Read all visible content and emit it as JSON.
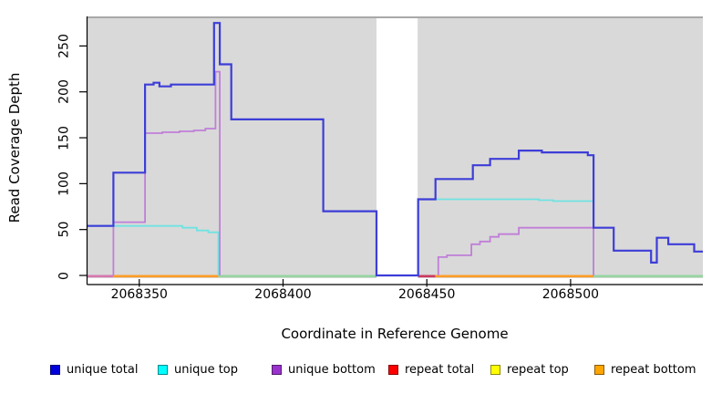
{
  "axes": {
    "x": {
      "title": "Coordinate in Reference Genome",
      "ticks": [
        {
          "value": 2068350,
          "label": "2068350"
        },
        {
          "value": 2068400,
          "label": "2068400"
        },
        {
          "value": 2068450,
          "label": "2068450"
        },
        {
          "value": 2068500,
          "label": "2068500"
        }
      ]
    },
    "y": {
      "title": "Read Coverage Depth",
      "ticks": [
        {
          "value": 0,
          "label": "0"
        },
        {
          "value": 50,
          "label": "50"
        },
        {
          "value": 100,
          "label": "100"
        },
        {
          "value": 150,
          "label": "150"
        },
        {
          "value": 200,
          "label": "200"
        },
        {
          "value": 250,
          "label": "250"
        }
      ]
    }
  },
  "legend": {
    "items": [
      {
        "label": "unique total",
        "color": "#0000dd"
      },
      {
        "label": "unique top",
        "color": "#00ffff"
      },
      {
        "label": "unique bottom",
        "color": "#9933cc"
      },
      {
        "label": "repeat total",
        "color": "#ff0000"
      },
      {
        "label": "repeat top",
        "color": "#ffff00"
      },
      {
        "label": "repeat bottom",
        "color": "#ffa500"
      }
    ]
  },
  "chart_data": {
    "type": "line",
    "style": "step",
    "title": "",
    "xlabel": "Coordinate in Reference Genome",
    "ylabel": "Read Coverage Depth",
    "x_range": [
      2068332,
      2068546
    ],
    "y_range": [
      0,
      285
    ],
    "plot_bg": "#d9d9d9",
    "top_border_color": "#a8a8a8",
    "no_data_gap": [
      2068432.5,
      2068446.8
    ],
    "series": [
      {
        "name": "unique top",
        "color": "#6fe3e1",
        "width": 1.8,
        "paths": [
          [
            [
              2068332,
              54
            ],
            [
              2068365,
              54
            ],
            [
              2068365,
              52
            ],
            [
              2068370,
              52
            ],
            [
              2068370,
              49
            ],
            [
              2068374,
              49
            ],
            [
              2068374,
              47
            ],
            [
              2068377.5,
              47
            ],
            [
              2068377.5,
              0
            ]
          ],
          [
            [
              2068447,
              0
            ],
            [
              2068447,
              83
            ],
            [
              2068489,
              83
            ],
            [
              2068489,
              82
            ],
            [
              2068494,
              82
            ],
            [
              2068494,
              81
            ],
            [
              2068508,
              81
            ],
            [
              2068508,
              0
            ]
          ]
        ]
      },
      {
        "name": "unique bottom",
        "color": "#c07fd8",
        "width": 1.8,
        "paths": [
          [
            [
              2068341,
              0
            ],
            [
              2068341,
              58
            ],
            [
              2068352,
              58
            ],
            [
              2068352,
              155
            ],
            [
              2068358,
              155
            ],
            [
              2068358,
              156
            ],
            [
              2068364,
              156
            ],
            [
              2068364,
              157
            ],
            [
              2068369,
              157
            ],
            [
              2068369,
              158
            ],
            [
              2068373,
              158
            ],
            [
              2068373,
              160
            ],
            [
              2068376.5,
              160
            ],
            [
              2068376.5,
              222
            ],
            [
              2068378,
              222
            ],
            [
              2068378,
              0
            ]
          ],
          [
            [
              2068454,
              0
            ],
            [
              2068454,
              20
            ],
            [
              2068457,
              20
            ],
            [
              2068457,
              22
            ],
            [
              2068465.5,
              22
            ],
            [
              2068465.5,
              34
            ],
            [
              2068468.5,
              34
            ],
            [
              2068468.5,
              37
            ],
            [
              2068472,
              37
            ],
            [
              2068472,
              42
            ],
            [
              2068475,
              42
            ],
            [
              2068475,
              45
            ],
            [
              2068482,
              45
            ],
            [
              2068482,
              52
            ],
            [
              2068508,
              52
            ],
            [
              2068508,
              0
            ]
          ]
        ]
      },
      {
        "name": "unique total",
        "color": "#3d3dd8",
        "width": 2.2,
        "paths": [
          [
            [
              2068332,
              54
            ],
            [
              2068341,
              54
            ],
            [
              2068341,
              112
            ],
            [
              2068352,
              112
            ],
            [
              2068352,
              208
            ],
            [
              2068355,
              208
            ],
            [
              2068355,
              210
            ],
            [
              2068357,
              210
            ],
            [
              2068357,
              206
            ],
            [
              2068361,
              206
            ],
            [
              2068361,
              208
            ],
            [
              2068376,
              208
            ],
            [
              2068376,
              275
            ],
            [
              2068378,
              275
            ],
            [
              2068378,
              230
            ],
            [
              2068382,
              230
            ],
            [
              2068382,
              170
            ],
            [
              2068414,
              170
            ],
            [
              2068414,
              70
            ],
            [
              2068432.5,
              70
            ],
            [
              2068432.5,
              0
            ],
            [
              2068447,
              0
            ],
            [
              2068447,
              83
            ],
            [
              2068453,
              83
            ],
            [
              2068453,
              105
            ],
            [
              2068466,
              105
            ],
            [
              2068466,
              120
            ],
            [
              2068472,
              120
            ],
            [
              2068472,
              127
            ],
            [
              2068482,
              127
            ],
            [
              2068482,
              136
            ],
            [
              2068490,
              136
            ],
            [
              2068490,
              134
            ],
            [
              2068506,
              134
            ],
            [
              2068506,
              131
            ],
            [
              2068508,
              131
            ],
            [
              2068508,
              52
            ],
            [
              2068515,
              52
            ],
            [
              2068515,
              27
            ],
            [
              2068528,
              27
            ],
            [
              2068528,
              14
            ],
            [
              2068530,
              14
            ],
            [
              2068530,
              41
            ],
            [
              2068534,
              41
            ],
            [
              2068534,
              34
            ],
            [
              2068543,
              34
            ],
            [
              2068543,
              26
            ],
            [
              2068546,
              26
            ]
          ]
        ]
      }
    ],
    "baseline_segments": [
      {
        "series": "unique bottom at 0",
        "color": "#d678ae",
        "x": [
          2068332,
          2068341
        ]
      },
      {
        "series": "repeat bottom at 0",
        "color": "#ff9d26",
        "x": [
          2068341,
          2068377.5
        ]
      },
      {
        "series": "baseline",
        "color": "#95d5a0",
        "x": [
          2068377.5,
          2068432.5
        ]
      },
      {
        "series": "repeat total at 0",
        "color": "#cc3a60",
        "x": [
          2068447,
          2068453
        ]
      },
      {
        "series": "repeat bottom at 0",
        "color": "#ff9d26",
        "x": [
          2068453,
          2068508
        ]
      },
      {
        "series": "baseline",
        "color": "#95d5a0",
        "x": [
          2068508,
          2068546
        ]
      }
    ]
  }
}
